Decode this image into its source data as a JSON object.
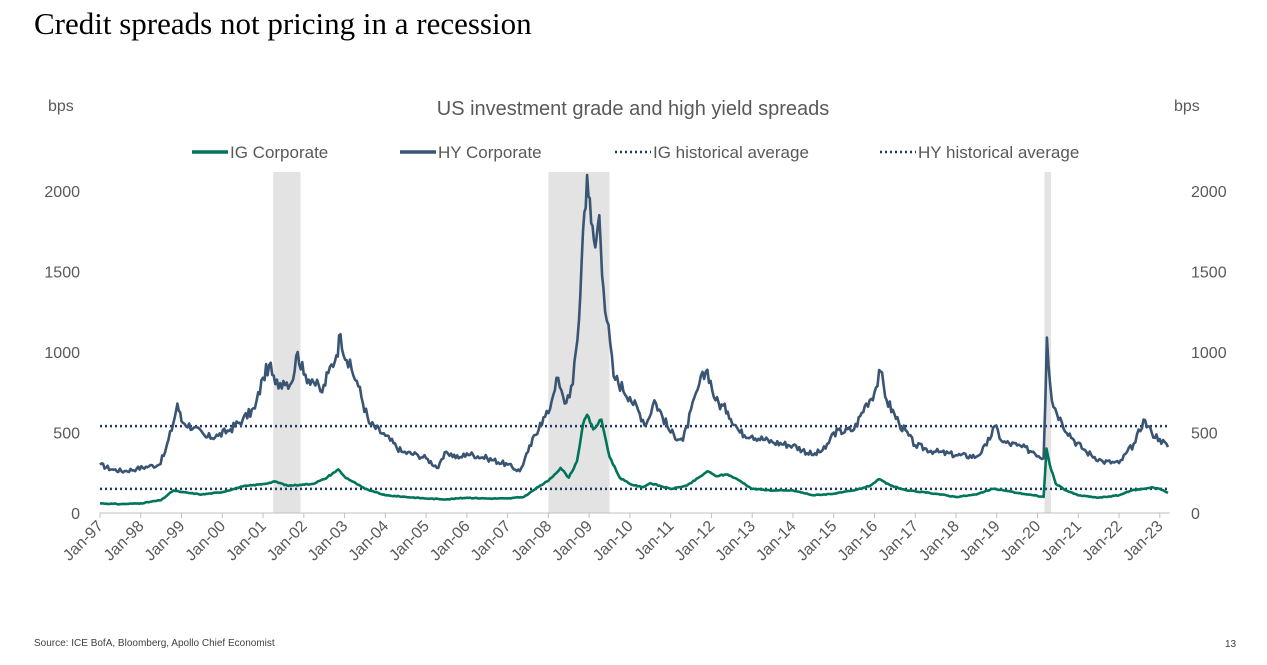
{
  "slide": {
    "title": "Credit spreads not pricing in a recession",
    "source": "Source: ICE BofA, Bloomberg, Apollo Chief Economist",
    "page_number": "13"
  },
  "chart_data": {
    "type": "line",
    "title": "US investment grade and high yield spreads",
    "ylabel_left": "bps",
    "ylabel_right": "bps",
    "ylim": [
      0,
      2100
    ],
    "yticks": [
      0,
      500,
      1000,
      1500,
      2000
    ],
    "xlim": [
      1997.0,
      2023.25
    ],
    "x_tick_labels": [
      "Jan-97",
      "Jan-98",
      "Jan-99",
      "Jan-00",
      "Jan-01",
      "Jan-02",
      "Jan-03",
      "Jan-04",
      "Jan-05",
      "Jan-06",
      "Jan-07",
      "Jan-08",
      "Jan-09",
      "Jan-10",
      "Jan-11",
      "Jan-12",
      "Jan-13",
      "Jan-14",
      "Jan-15",
      "Jan-16",
      "Jan-17",
      "Jan-18",
      "Jan-19",
      "Jan-20",
      "Jan-21",
      "Jan-22",
      "Jan-23"
    ],
    "x_tick_years": [
      1997,
      1998,
      1999,
      2000,
      2001,
      2002,
      2003,
      2004,
      2005,
      2006,
      2007,
      2008,
      2009,
      2010,
      2011,
      2012,
      2013,
      2014,
      2015,
      2016,
      2017,
      2018,
      2019,
      2020,
      2021,
      2022,
      2023
    ],
    "legend_position": "top",
    "recessions": [
      {
        "start": 2001.25,
        "end": 2001.92
      },
      {
        "start": 2008.0,
        "end": 2009.5
      },
      {
        "start": 2020.17,
        "end": 2020.33
      }
    ],
    "reference_lines": [
      {
        "name": "IG historical average",
        "value": 150,
        "color": "#1f3864"
      },
      {
        "name": "HY historical average",
        "value": 540,
        "color": "#1f3864"
      }
    ],
    "series": [
      {
        "name": "IG Corporate",
        "color": "#00755a",
        "points": [
          [
            1997.0,
            60
          ],
          [
            1997.5,
            55
          ],
          [
            1998.0,
            60
          ],
          [
            1998.5,
            80
          ],
          [
            1998.8,
            140
          ],
          [
            1999.0,
            130
          ],
          [
            1999.5,
            115
          ],
          [
            2000.0,
            130
          ],
          [
            2000.5,
            165
          ],
          [
            2001.0,
            180
          ],
          [
            2001.3,
            195
          ],
          [
            2001.6,
            170
          ],
          [
            2001.9,
            175
          ],
          [
            2002.2,
            180
          ],
          [
            2002.5,
            210
          ],
          [
            2002.7,
            245
          ],
          [
            2002.85,
            270
          ],
          [
            2003.0,
            225
          ],
          [
            2003.5,
            150
          ],
          [
            2004.0,
            110
          ],
          [
            2004.5,
            100
          ],
          [
            2005.0,
            90
          ],
          [
            2005.5,
            85
          ],
          [
            2006.0,
            95
          ],
          [
            2006.5,
            90
          ],
          [
            2007.0,
            90
          ],
          [
            2007.4,
            100
          ],
          [
            2007.8,
            170
          ],
          [
            2008.0,
            200
          ],
          [
            2008.3,
            280
          ],
          [
            2008.5,
            220
          ],
          [
            2008.7,
            320
          ],
          [
            2008.85,
            550
          ],
          [
            2008.95,
            610
          ],
          [
            2009.1,
            520
          ],
          [
            2009.3,
            580
          ],
          [
            2009.5,
            350
          ],
          [
            2009.75,
            220
          ],
          [
            2010.0,
            180
          ],
          [
            2010.3,
            160
          ],
          [
            2010.5,
            185
          ],
          [
            2011.0,
            150
          ],
          [
            2011.4,
            170
          ],
          [
            2011.75,
            230
          ],
          [
            2011.9,
            260
          ],
          [
            2012.1,
            230
          ],
          [
            2012.4,
            240
          ],
          [
            2012.7,
            200
          ],
          [
            2013.0,
            150
          ],
          [
            2013.5,
            140
          ],
          [
            2014.0,
            140
          ],
          [
            2014.5,
            110
          ],
          [
            2015.0,
            120
          ],
          [
            2015.5,
            140
          ],
          [
            2015.9,
            170
          ],
          [
            2016.1,
            210
          ],
          [
            2016.4,
            170
          ],
          [
            2016.8,
            140
          ],
          [
            2017.5,
            120
          ],
          [
            2018.0,
            100
          ],
          [
            2018.5,
            115
          ],
          [
            2018.9,
            150
          ],
          [
            2019.2,
            140
          ],
          [
            2019.5,
            125
          ],
          [
            2019.9,
            110
          ],
          [
            2020.15,
            100
          ],
          [
            2020.22,
            400
          ],
          [
            2020.3,
            300
          ],
          [
            2020.45,
            180
          ],
          [
            2020.7,
            140
          ],
          [
            2021.0,
            110
          ],
          [
            2021.5,
            95
          ],
          [
            2022.0,
            110
          ],
          [
            2022.3,
            140
          ],
          [
            2022.6,
            150
          ],
          [
            2022.8,
            160
          ],
          [
            2023.0,
            150
          ],
          [
            2023.2,
            125
          ]
        ]
      },
      {
        "name": "HY Corporate",
        "color": "#3a5573",
        "points": [
          [
            1997.0,
            300
          ],
          [
            1997.3,
            270
          ],
          [
            1997.6,
            260
          ],
          [
            1997.9,
            275
          ],
          [
            1998.2,
            290
          ],
          [
            1998.45,
            300
          ],
          [
            1998.6,
            380
          ],
          [
            1998.8,
            560
          ],
          [
            1998.9,
            680
          ],
          [
            1999.0,
            570
          ],
          [
            1999.3,
            530
          ],
          [
            1999.6,
            470
          ],
          [
            1999.9,
            480
          ],
          [
            2000.2,
            520
          ],
          [
            2000.5,
            580
          ],
          [
            2000.8,
            650
          ],
          [
            2001.0,
            840
          ],
          [
            2001.15,
            920
          ],
          [
            2001.3,
            800
          ],
          [
            2001.5,
            820
          ],
          [
            2001.7,
            810
          ],
          [
            2001.85,
            1000
          ],
          [
            2002.0,
            860
          ],
          [
            2002.2,
            830
          ],
          [
            2002.45,
            750
          ],
          [
            2002.6,
            870
          ],
          [
            2002.8,
            980
          ],
          [
            2002.9,
            1110
          ],
          [
            2003.05,
            950
          ],
          [
            2003.3,
            820
          ],
          [
            2003.6,
            560
          ],
          [
            2004.0,
            480
          ],
          [
            2004.4,
            380
          ],
          [
            2004.8,
            360
          ],
          [
            2005.0,
            340
          ],
          [
            2005.3,
            280
          ],
          [
            2005.5,
            380
          ],
          [
            2005.8,
            340
          ],
          [
            2006.0,
            370
          ],
          [
            2006.5,
            340
          ],
          [
            2007.0,
            300
          ],
          [
            2007.3,
            260
          ],
          [
            2007.5,
            380
          ],
          [
            2007.8,
            560
          ],
          [
            2008.0,
            620
          ],
          [
            2008.2,
            840
          ],
          [
            2008.4,
            680
          ],
          [
            2008.6,
            800
          ],
          [
            2008.75,
            1200
          ],
          [
            2008.85,
            1750
          ],
          [
            2008.95,
            2100
          ],
          [
            2009.05,
            1800
          ],
          [
            2009.15,
            1650
          ],
          [
            2009.25,
            1850
          ],
          [
            2009.35,
            1400
          ],
          [
            2009.6,
            850
          ],
          [
            2010.0,
            720
          ],
          [
            2010.4,
            550
          ],
          [
            2010.6,
            700
          ],
          [
            2011.0,
            500
          ],
          [
            2011.3,
            450
          ],
          [
            2011.7,
            800
          ],
          [
            2011.9,
            890
          ],
          [
            2012.1,
            700
          ],
          [
            2012.4,
            630
          ],
          [
            2012.7,
            500
          ],
          [
            2013.0,
            480
          ],
          [
            2013.5,
            440
          ],
          [
            2014.0,
            420
          ],
          [
            2014.5,
            360
          ],
          [
            2014.8,
            400
          ],
          [
            2015.0,
            500
          ],
          [
            2015.5,
            520
          ],
          [
            2015.8,
            680
          ],
          [
            2016.0,
            750
          ],
          [
            2016.15,
            880
          ],
          [
            2016.3,
            700
          ],
          [
            2016.6,
            560
          ],
          [
            2017.0,
            420
          ],
          [
            2017.5,
            380
          ],
          [
            2018.0,
            360
          ],
          [
            2018.5,
            350
          ],
          [
            2018.75,
            420
          ],
          [
            2018.95,
            540
          ],
          [
            2019.15,
            440
          ],
          [
            2019.5,
            420
          ],
          [
            2019.9,
            380
          ],
          [
            2020.15,
            340
          ],
          [
            2020.23,
            1090
          ],
          [
            2020.35,
            700
          ],
          [
            2020.6,
            560
          ],
          [
            2020.9,
            450
          ],
          [
            2021.2,
            380
          ],
          [
            2021.6,
            320
          ],
          [
            2022.0,
            310
          ],
          [
            2022.4,
            440
          ],
          [
            2022.6,
            580
          ],
          [
            2022.8,
            500
          ],
          [
            2023.0,
            460
          ],
          [
            2023.2,
            410
          ]
        ]
      }
    ]
  }
}
